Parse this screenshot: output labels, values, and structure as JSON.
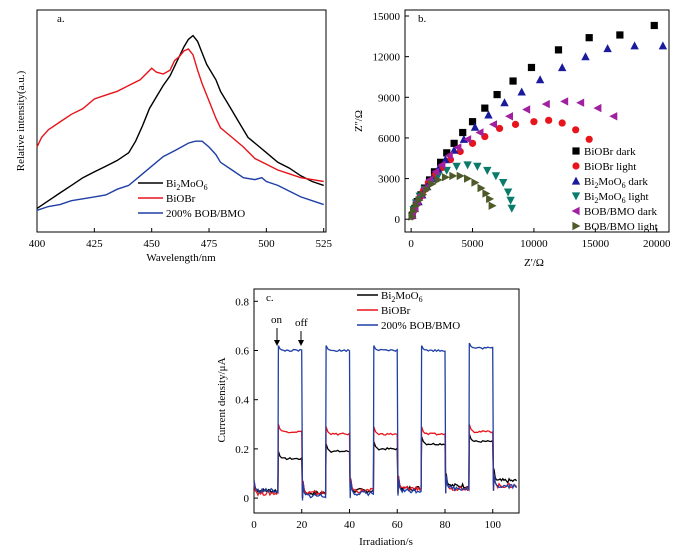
{
  "colors": {
    "black": "#000000",
    "red": "#e8141b",
    "blue": "#1f3fa6",
    "navy": "#1a1a9c",
    "purple": "#a020a0",
    "teal": "#0a7a6a",
    "olive": "#4e5a2a"
  },
  "chart_data": [
    {
      "panel": "a.",
      "type": "line",
      "xlabel": "Wavelength/nm",
      "ylabel": "Relative intensity(a.u.)",
      "xlim": [
        400,
        526
      ],
      "ylim": [
        0,
        1
      ],
      "xticks": [
        "400",
        "425",
        "450",
        "475",
        "500",
        "525"
      ],
      "series": [
        {
          "name": "Bi2MoO6",
          "legend_prefix": "Bi",
          "legend_sub1": "2",
          "legend_mid": "MoO",
          "legend_sub2": "6",
          "color": "#000000",
          "x": [
            400,
            405,
            410,
            415,
            420,
            425,
            430,
            435,
            440,
            443,
            446,
            449,
            452,
            455,
            458,
            460,
            462,
            464,
            466,
            468,
            470,
            472,
            474,
            476,
            478,
            480,
            484,
            488,
            492,
            496,
            500,
            505,
            510,
            515,
            520,
            525
          ],
          "y": [
            0.05,
            0.09,
            0.13,
            0.17,
            0.21,
            0.24,
            0.27,
            0.3,
            0.34,
            0.4,
            0.48,
            0.57,
            0.63,
            0.69,
            0.74,
            0.79,
            0.84,
            0.89,
            0.93,
            0.95,
            0.92,
            0.86,
            0.8,
            0.76,
            0.72,
            0.66,
            0.58,
            0.5,
            0.42,
            0.38,
            0.34,
            0.29,
            0.26,
            0.22,
            0.19,
            0.17
          ]
        },
        {
          "name": "BiOBr",
          "color": "#e8141b",
          "x": [
            400,
            402,
            405,
            410,
            415,
            420,
            425,
            430,
            435,
            440,
            445,
            450,
            452,
            455,
            458,
            460,
            462,
            464,
            466,
            468,
            470,
            472,
            474,
            476,
            478,
            480,
            485,
            490,
            495,
            500,
            505,
            510,
            515,
            520,
            525
          ],
          "y": [
            0.37,
            0.42,
            0.46,
            0.5,
            0.54,
            0.57,
            0.62,
            0.64,
            0.66,
            0.69,
            0.72,
            0.78,
            0.76,
            0.75,
            0.77,
            0.82,
            0.84,
            0.87,
            0.88,
            0.85,
            0.77,
            0.7,
            0.64,
            0.58,
            0.52,
            0.47,
            0.42,
            0.37,
            0.31,
            0.28,
            0.25,
            0.23,
            0.21,
            0.2,
            0.19
          ]
        },
        {
          "name": "200% BOB/BMO",
          "color": "#1f3fa6",
          "x": [
            400,
            405,
            410,
            415,
            420,
            425,
            430,
            435,
            440,
            445,
            450,
            455,
            460,
            463,
            466,
            469,
            472,
            475,
            478,
            480,
            485,
            490,
            495,
            498,
            500,
            505,
            510,
            515,
            520,
            525
          ],
          "y": [
            0.04,
            0.06,
            0.07,
            0.09,
            0.1,
            0.11,
            0.12,
            0.15,
            0.17,
            0.22,
            0.27,
            0.32,
            0.35,
            0.37,
            0.39,
            0.4,
            0.4,
            0.37,
            0.33,
            0.29,
            0.25,
            0.21,
            0.2,
            0.21,
            0.19,
            0.17,
            0.14,
            0.11,
            0.09,
            0.07
          ]
        }
      ]
    },
    {
      "panel": "b.",
      "type": "scatter",
      "xlabel": "Z'/Ω",
      "ylabel": "Z''/Ω",
      "xlim": [
        -500,
        21000
      ],
      "ylim": [
        -500,
        15000
      ],
      "xticks": [
        "0",
        "5000",
        "10000",
        "15000",
        "20000"
      ],
      "yticks": [
        "0",
        "3000",
        "6000",
        "9000",
        "12000",
        "15000"
      ],
      "series": [
        {
          "name": "BiOBr dark",
          "marker": "square",
          "color": "#000000",
          "x": [
            100,
            300,
            500,
            800,
            1100,
            1500,
            1900,
            2400,
            2900,
            3500,
            4200,
            5000,
            6000,
            7000,
            8300,
            9800,
            12000,
            14500,
            17000,
            19800
          ],
          "y": [
            300,
            800,
            1300,
            1800,
            2300,
            2900,
            3500,
            4200,
            4900,
            5600,
            6400,
            7200,
            8200,
            9200,
            10200,
            11200,
            12500,
            13400,
            13600,
            14300
          ]
        },
        {
          "name": "BiOBr light",
          "marker": "circle",
          "color": "#e8141b",
          "x": [
            80,
            200,
            400,
            700,
            1000,
            1400,
            1900,
            2500,
            3200,
            4000,
            5000,
            6000,
            7200,
            8500,
            10000,
            11200,
            12300,
            13400,
            14500
          ],
          "y": [
            200,
            600,
            1100,
            1600,
            2100,
            2700,
            3200,
            3800,
            4400,
            5000,
            5600,
            6100,
            6700,
            7000,
            7200,
            7300,
            7100,
            6600,
            5900
          ]
        },
        {
          "name": "Bi2MoO6 dark",
          "legend_prefix": "Bi",
          "legend_sub1": "2",
          "legend_mid": "MoO",
          "legend_sub2": "6",
          "legend_suffix": " dark",
          "marker": "triangle-up",
          "color": "#1a1a9c",
          "x": [
            100,
            300,
            600,
            900,
            1300,
            1700,
            2200,
            2800,
            3500,
            4300,
            5200,
            6300,
            7600,
            9000,
            10500,
            12300,
            14200,
            16000,
            18200,
            20500
          ],
          "y": [
            300,
            800,
            1300,
            1800,
            2400,
            3000,
            3700,
            4400,
            5100,
            5900,
            6800,
            7700,
            8600,
            9400,
            10300,
            11200,
            12000,
            12600,
            12800,
            12800
          ]
        },
        {
          "name": "Bi2MoO6 light",
          "legend_prefix": "Bi",
          "legend_sub1": "2",
          "legend_mid": "MoO",
          "legend_sub2": "6",
          "legend_suffix": " light",
          "marker": "triangle-down",
          "color": "#0a7a6a",
          "x": [
            80,
            200,
            400,
            700,
            1100,
            1600,
            2200,
            2900,
            3700,
            4600,
            5400,
            6200,
            6900,
            7500,
            7900,
            8100,
            8200
          ],
          "y": [
            200,
            700,
            1200,
            1700,
            2200,
            2700,
            3200,
            3600,
            3900,
            4000,
            3900,
            3600,
            3200,
            2700,
            2000,
            1400,
            800
          ]
        },
        {
          "name": "BOB/BMO dark",
          "marker": "triangle-left",
          "color": "#a020a0",
          "x": [
            100,
            300,
            500,
            800,
            1100,
            1500,
            2000,
            2500,
            3100,
            3800,
            4600,
            5600,
            6700,
            8000,
            9400,
            11000,
            12500,
            13800,
            15200,
            16500
          ],
          "y": [
            300,
            800,
            1300,
            1800,
            2300,
            2900,
            3500,
            4000,
            4700,
            5300,
            5900,
            6400,
            7000,
            7600,
            8100,
            8500,
            8700,
            8600,
            8200,
            7600
          ]
        },
        {
          "name": "BOB/BMO light",
          "marker": "triangle-right",
          "color": "#4e5a2a",
          "x": [
            80,
            200,
            400,
            650,
            950,
            1300,
            1700,
            2200,
            2800,
            3400,
            4000,
            4600,
            5200,
            5700,
            6100,
            6400,
            6600
          ],
          "y": [
            200,
            600,
            1000,
            1400,
            1800,
            2200,
            2600,
            2900,
            3100,
            3200,
            3200,
            3000,
            2700,
            2300,
            1900,
            1500,
            1000
          ]
        }
      ]
    },
    {
      "panel": "c.",
      "type": "line",
      "xlabel": "Irradiation/s",
      "ylabel": "Current density/μA",
      "xlim": [
        0,
        111
      ],
      "ylim": [
        -0.02,
        0.85
      ],
      "xticks": [
        "0",
        "20",
        "40",
        "60",
        "80",
        "100"
      ],
      "yticks": [
        "0",
        "0.2",
        "0.4",
        "0.6",
        "0.8"
      ],
      "cycles": [
        [
          10,
          20
        ],
        [
          30,
          40
        ],
        [
          50,
          60
        ],
        [
          70,
          80
        ],
        [
          90,
          100
        ]
      ],
      "on_label": "on",
      "off_label": "off",
      "series": [
        {
          "name": "Bi2MoO6",
          "legend_prefix": "Bi",
          "legend_sub1": "2",
          "legend_mid": "MoO",
          "legend_sub2": "6",
          "color": "#000000",
          "off_levels": [
            0.03,
            0.02,
            0.03,
            0.04,
            0.05,
            0.07
          ],
          "on_levels": [
            0.16,
            0.19,
            0.2,
            0.22,
            0.23
          ]
        },
        {
          "name": "BiOBr",
          "color": "#e8141b",
          "off_levels": [
            0.02,
            0.02,
            0.03,
            0.04,
            0.04,
            0.05
          ],
          "on_levels": [
            0.27,
            0.26,
            0.26,
            0.26,
            0.27
          ]
        },
        {
          "name": "200% BOB/BMO",
          "color": "#1f3fa6",
          "off_levels": [
            0.03,
            0.01,
            0.02,
            0.03,
            0.04,
            0.05
          ],
          "on_levels": [
            0.6,
            0.6,
            0.6,
            0.6,
            0.61
          ]
        }
      ]
    }
  ]
}
